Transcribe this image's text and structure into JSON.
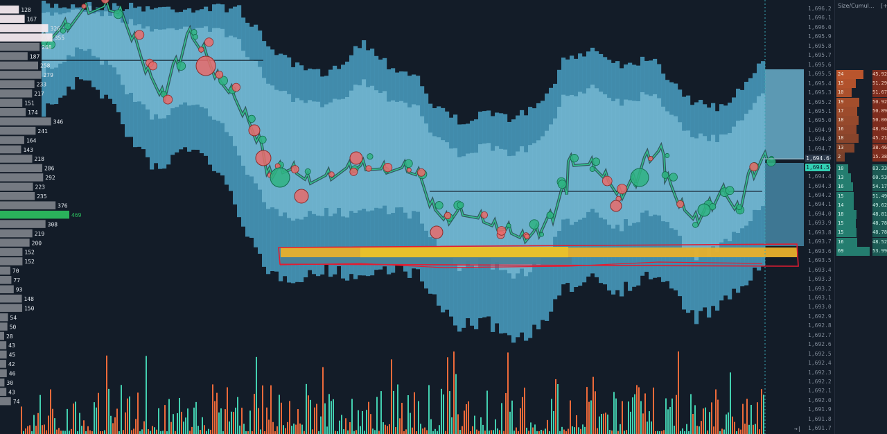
{
  "price_axis": {
    "ticks": [
      "1,696.2",
      "1,696.1",
      "1,696.0",
      "1,695.9",
      "1,695.8",
      "1,695.7",
      "1,695.6",
      "1,695.5",
      "1,695.4",
      "1,695.3",
      "1,695.2",
      "1,695.1",
      "1,695.0",
      "1,694.9",
      "1,694.8",
      "1,694.7",
      "1,694.6",
      "1,694.5",
      "1,694.4",
      "1,694.3",
      "1,694.2",
      "1,694.1",
      "1,694.0",
      "1,693.9",
      "1,693.8",
      "1,693.7",
      "1,693.6",
      "1,693.5",
      "1,693.4",
      "1,693.3",
      "1,693.2",
      "1,693.1",
      "1,693.0",
      "1,692.9",
      "1,692.8",
      "1,692.7",
      "1,692.6",
      "1,692.5",
      "1,692.4",
      "1,692.3",
      "1,692.2",
      "1,692.1",
      "1,692.0",
      "1,691.9",
      "1,691.8",
      "1,691.7"
    ],
    "last_price": "1,694.6",
    "current_price": "1,694.5",
    "marker_glyph": "→|"
  },
  "dom_panel": {
    "header_left": "Size/Cumul...",
    "header_right": "[+",
    "asks": [
      {
        "size": "24",
        "cum": "45.92"
      },
      {
        "size": "15",
        "cum": "51.29"
      },
      {
        "size": "10",
        "cum": "51.67"
      },
      {
        "size": "19",
        "cum": "50.92"
      },
      {
        "size": "17",
        "cum": "50.89"
      },
      {
        "size": "18",
        "cum": "50.00"
      },
      {
        "size": "16",
        "cum": "48.04"
      },
      {
        "size": "18",
        "cum": "45.21"
      },
      {
        "size": "13",
        "cum": "38.46"
      },
      {
        "size": "2",
        "cum": "15.38"
      }
    ],
    "bids": [
      {
        "size": "10",
        "cum": "83.33"
      },
      {
        "size": "13",
        "cum": "60.53"
      },
      {
        "size": "16",
        "cum": "54.17"
      },
      {
        "size": "15",
        "cum": "51.49"
      },
      {
        "size": "14",
        "cum": "49.62"
      },
      {
        "size": "18",
        "cum": "48.81"
      },
      {
        "size": "15",
        "cum": "48.78"
      },
      {
        "size": "15",
        "cum": "48.78"
      },
      {
        "size": "16",
        "cum": "48.52"
      },
      {
        "size": "69",
        "cum": "53.99"
      }
    ]
  },
  "volume_profile": [
    {
      "label": "128",
      "value": 128
    },
    {
      "label": "167",
      "value": 167
    },
    {
      "label": "326",
      "value": 326
    },
    {
      "label": "355",
      "value": 355
    },
    {
      "label": "268",
      "value": 268
    },
    {
      "label": "187",
      "value": 187
    },
    {
      "label": "258",
      "value": 258
    },
    {
      "label": "279",
      "value": 279
    },
    {
      "label": "233",
      "value": 233
    },
    {
      "label": "217",
      "value": 217
    },
    {
      "label": "151",
      "value": 151
    },
    {
      "label": "174",
      "value": 174
    },
    {
      "label": "346",
      "value": 346
    },
    {
      "label": "241",
      "value": 241
    },
    {
      "label": "164",
      "value": 164
    },
    {
      "label": "143",
      "value": 143
    },
    {
      "label": "218",
      "value": 218
    },
    {
      "label": "286",
      "value": 286
    },
    {
      "label": "292",
      "value": 292
    },
    {
      "label": "223",
      "value": 223
    },
    {
      "label": "235",
      "value": 235
    },
    {
      "label": "376",
      "value": 376
    },
    {
      "label": "469",
      "value": 469,
      "highlight": true
    },
    {
      "label": "308",
      "value": 308
    },
    {
      "label": "219",
      "value": 219
    },
    {
      "label": "200",
      "value": 200
    },
    {
      "label": "152",
      "value": 152
    },
    {
      "label": "152",
      "value": 152
    },
    {
      "label": "70",
      "value": 70
    },
    {
      "label": "77",
      "value": 77
    },
    {
      "label": "93",
      "value": 93
    },
    {
      "label": "148",
      "value": 148
    },
    {
      "label": "150",
      "value": 150
    },
    {
      "label": "54",
      "value": 54
    },
    {
      "label": "50",
      "value": 50
    },
    {
      "label": "28",
      "value": 28
    },
    {
      "label": "43",
      "value": 43
    },
    {
      "label": "45",
      "value": 45
    },
    {
      "label": "42",
      "value": 42
    },
    {
      "label": "46",
      "value": 46
    },
    {
      "label": "30",
      "value": 30
    },
    {
      "label": "43",
      "value": 43
    },
    {
      "label": "74",
      "value": 74
    }
  ],
  "colors": {
    "background": "#131c28",
    "heatmap_light": "#7fc9e3",
    "heatmap_mid": "#3a8fb3",
    "big_order": "#e8b02b",
    "buy": "#2fb382",
    "sell": "#e96b6b",
    "volume_buy": "#43d0b0",
    "volume_sell": "#ee6a3a",
    "highlight_box": "#e21d32",
    "profile_bar": "#7a7f87",
    "profile_highlight": "#2bbb5e"
  }
}
